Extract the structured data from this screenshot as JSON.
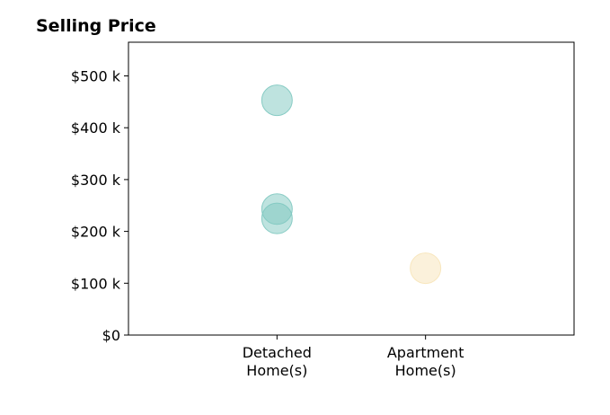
{
  "chart_data": {
    "type": "scatter",
    "title": "Selling Price",
    "xlabel": "",
    "ylabel": "",
    "categories": [
      [
        "Detached",
        "Home(s)"
      ],
      [
        "Apartment",
        "Home(s)"
      ]
    ],
    "xlim": [
      0,
      3
    ],
    "category_positions": [
      1,
      2
    ],
    "ylim": [
      0,
      565
    ],
    "yticks": [
      0,
      100,
      200,
      300,
      400,
      500
    ],
    "ytick_labels": [
      "$0",
      "$100 k",
      "$200 k",
      "$300 k",
      "$400 k",
      "$500 k"
    ],
    "grid": false,
    "series": [
      {
        "category_index": 0,
        "color": "#7ec8c0",
        "points": [
          453,
          243,
          225
        ]
      },
      {
        "category_index": 1,
        "color": "#f7e4b8",
        "points": [
          129
        ]
      }
    ]
  }
}
